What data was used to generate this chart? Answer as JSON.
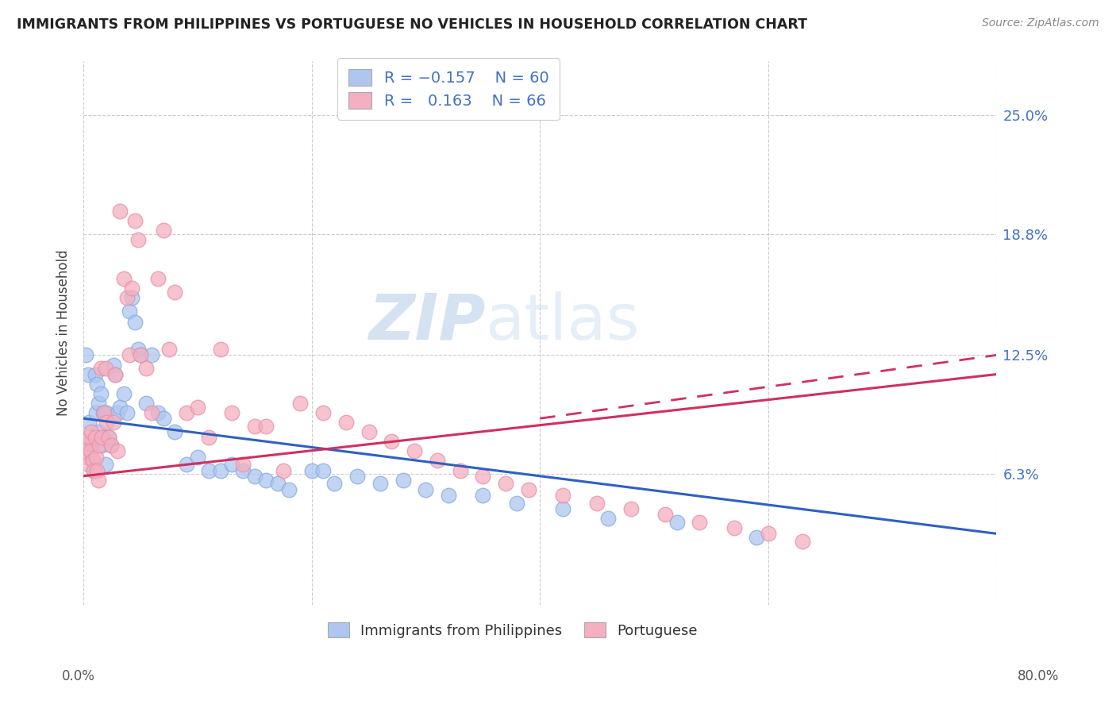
{
  "title": "IMMIGRANTS FROM PHILIPPINES VS PORTUGUESE NO VEHICLES IN HOUSEHOLD CORRELATION CHART",
  "source": "Source: ZipAtlas.com",
  "ylabel": "No Vehicles in Household",
  "ytick_labels": [
    "6.3%",
    "12.5%",
    "18.8%",
    "25.0%"
  ],
  "ytick_values": [
    0.063,
    0.125,
    0.188,
    0.25
  ],
  "xlim": [
    0.0,
    0.8
  ],
  "ylim": [
    -0.005,
    0.278
  ],
  "legend_entry1": {
    "color": "#aec6f0",
    "R": "-0.157",
    "N": "60",
    "label": "Immigrants from Philippines"
  },
  "legend_entry2": {
    "color": "#f4afc0",
    "R": "0.163",
    "N": "66",
    "label": "Portuguese"
  },
  "philippines_color": "#aec6f0",
  "portuguese_color": "#f4afc0",
  "philippines_edge": "#88aadd",
  "portuguese_edge": "#e890a8",
  "trend_philippines_color": "#3060c0",
  "trend_portuguese_color": "#d03060",
  "watermark_zip": "ZIP",
  "watermark_atlas": "atlas",
  "philippines_x": [
    0.002,
    0.004,
    0.005,
    0.006,
    0.007,
    0.008,
    0.009,
    0.01,
    0.011,
    0.012,
    0.013,
    0.014,
    0.015,
    0.016,
    0.017,
    0.018,
    0.019,
    0.02,
    0.022,
    0.024,
    0.026,
    0.028,
    0.03,
    0.032,
    0.035,
    0.038,
    0.04,
    0.042,
    0.045,
    0.048,
    0.05,
    0.055,
    0.06,
    0.065,
    0.07,
    0.08,
    0.09,
    0.1,
    0.11,
    0.12,
    0.13,
    0.14,
    0.15,
    0.16,
    0.17,
    0.18,
    0.2,
    0.21,
    0.22,
    0.24,
    0.26,
    0.28,
    0.3,
    0.32,
    0.35,
    0.38,
    0.42,
    0.46,
    0.52,
    0.59
  ],
  "philippines_y": [
    0.125,
    0.115,
    0.09,
    0.08,
    0.078,
    0.07,
    0.065,
    0.115,
    0.095,
    0.11,
    0.1,
    0.085,
    0.105,
    0.078,
    0.095,
    0.082,
    0.068,
    0.095,
    0.082,
    0.078,
    0.12,
    0.115,
    0.095,
    0.098,
    0.105,
    0.095,
    0.148,
    0.155,
    0.142,
    0.128,
    0.125,
    0.1,
    0.125,
    0.095,
    0.092,
    0.085,
    0.068,
    0.072,
    0.065,
    0.065,
    0.068,
    0.065,
    0.062,
    0.06,
    0.058,
    0.055,
    0.065,
    0.065,
    0.058,
    0.062,
    0.058,
    0.06,
    0.055,
    0.052,
    0.052,
    0.048,
    0.045,
    0.04,
    0.038,
    0.03
  ],
  "portuguese_x": [
    0.001,
    0.002,
    0.003,
    0.004,
    0.005,
    0.006,
    0.007,
    0.008,
    0.009,
    0.01,
    0.011,
    0.012,
    0.013,
    0.014,
    0.015,
    0.016,
    0.018,
    0.019,
    0.02,
    0.022,
    0.024,
    0.026,
    0.028,
    0.03,
    0.032,
    0.035,
    0.038,
    0.04,
    0.042,
    0.045,
    0.048,
    0.05,
    0.055,
    0.06,
    0.065,
    0.07,
    0.075,
    0.08,
    0.09,
    0.1,
    0.11,
    0.12,
    0.13,
    0.14,
    0.15,
    0.16,
    0.175,
    0.19,
    0.21,
    0.23,
    0.25,
    0.27,
    0.29,
    0.31,
    0.33,
    0.35,
    0.37,
    0.39,
    0.42,
    0.45,
    0.48,
    0.51,
    0.54,
    0.57,
    0.6,
    0.63
  ],
  "portuguese_y": [
    0.08,
    0.075,
    0.072,
    0.068,
    0.082,
    0.075,
    0.085,
    0.07,
    0.065,
    0.082,
    0.072,
    0.065,
    0.06,
    0.078,
    0.118,
    0.082,
    0.095,
    0.118,
    0.09,
    0.082,
    0.078,
    0.09,
    0.115,
    0.075,
    0.2,
    0.165,
    0.155,
    0.125,
    0.16,
    0.195,
    0.185,
    0.125,
    0.118,
    0.095,
    0.165,
    0.19,
    0.128,
    0.158,
    0.095,
    0.098,
    0.082,
    0.128,
    0.095,
    0.068,
    0.088,
    0.088,
    0.065,
    0.1,
    0.095,
    0.09,
    0.085,
    0.08,
    0.075,
    0.07,
    0.065,
    0.062,
    0.058,
    0.055,
    0.052,
    0.048,
    0.045,
    0.042,
    0.038,
    0.035,
    0.032,
    0.028
  ],
  "trend_phil_x0": 0.0,
  "trend_phil_x1": 0.8,
  "trend_phil_y0": 0.092,
  "trend_phil_y1": 0.032,
  "trend_port_x0": 0.0,
  "trend_port_x1": 0.8,
  "trend_port_y0": 0.062,
  "trend_port_y1": 0.115,
  "trend_port_dash_x0": 0.4,
  "trend_port_dash_x1": 0.8,
  "trend_port_dash_y0": 0.092,
  "trend_port_dash_y1": 0.125
}
